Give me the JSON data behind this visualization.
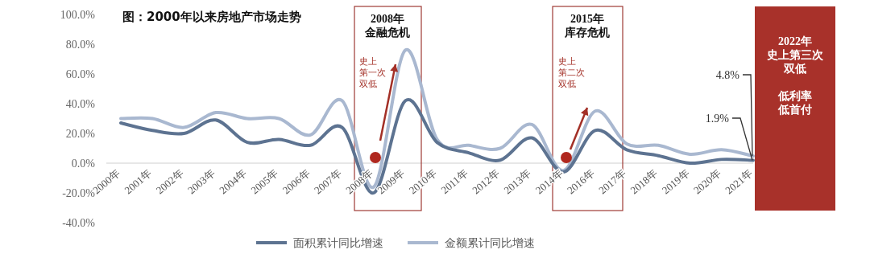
{
  "chart_data": {
    "type": "line",
    "title": "图：2000年以来房地产市场走势",
    "categories": [
      "2000年",
      "2001年",
      "2002年",
      "2003年",
      "2004年",
      "2005年",
      "2006年",
      "2007年",
      "2008年",
      "2009年",
      "2010年",
      "2011年",
      "2012年",
      "2013年",
      "2014年",
      "2016年",
      "2017年",
      "2018年",
      "2019年",
      "2020年",
      "2021年"
    ],
    "series": [
      {
        "name": "面积累计同比增速",
        "color": "#5d7391",
        "values": [
          27,
          22,
          20,
          29,
          14,
          16,
          12,
          24,
          -20,
          42,
          14,
          7,
          2,
          17,
          -6,
          22,
          9,
          5,
          0,
          2.5,
          1.9
        ],
        "value_labels": [
          null,
          null,
          null,
          null,
          null,
          null,
          null,
          null,
          null,
          null,
          null,
          null,
          null,
          null,
          null,
          null,
          null,
          null,
          null,
          null,
          "1.9%"
        ]
      },
      {
        "name": "金额累计同比增速",
        "color": "#a9b8d0",
        "values": [
          30,
          30,
          24,
          34,
          30,
          30,
          19,
          42,
          -16,
          76,
          16,
          12,
          10,
          26,
          -5,
          35,
          13,
          12,
          6,
          9,
          4.8
        ],
        "value_labels": [
          null,
          null,
          null,
          null,
          null,
          null,
          null,
          null,
          null,
          null,
          null,
          null,
          null,
          null,
          null,
          null,
          null,
          null,
          null,
          null,
          "4.8%"
        ]
      }
    ],
    "ylim": [
      -40,
      100
    ],
    "yticks": [
      {
        "value": -40,
        "label": "-40.0%"
      },
      {
        "value": -20,
        "label": "-20.0%"
      },
      {
        "value": 0,
        "label": "0.0%"
      },
      {
        "value": 20,
        "label": "20.0%"
      },
      {
        "value": 40,
        "label": "40.0%"
      },
      {
        "value": 60,
        "label": "60.0%"
      },
      {
        "value": 80,
        "label": "80.0%"
      },
      {
        "value": 100,
        "label": "100.0%"
      }
    ],
    "legend": "bottom",
    "annotations": [
      "2008年",
      "金融危机",
      "史上",
      "第一次",
      "双低",
      "2015年",
      "库存危机",
      "史上",
      "第二次",
      "双低",
      "2022年",
      "史上第三次",
      "双低",
      "低利率",
      "低首付"
    ]
  }
}
